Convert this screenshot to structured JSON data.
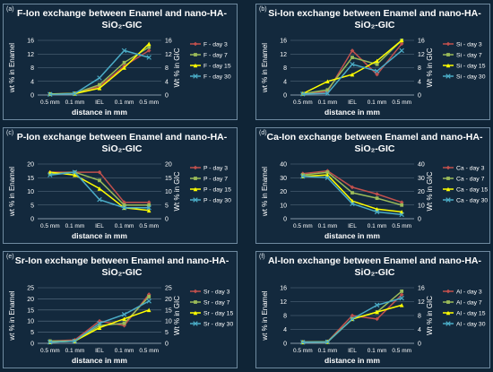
{
  "colors": {
    "background": "#0f2436",
    "panel": "#13293d",
    "border": "#6f8aa0",
    "grid": "#5d7385",
    "series": [
      "#c0504d",
      "#9bbb59",
      "#ffff00",
      "#4bacc6"
    ]
  },
  "chart_data": [
    {
      "type": "line",
      "letter": "(a)",
      "title": "F-Ion exchange between Enamel and nano-HA-SiO₂-GIC",
      "categories": [
        "0.5 mm",
        "0.1 mm",
        "IEL",
        "0.1 mm",
        "0.5 mm"
      ],
      "xlabel": "distance in mm",
      "ylabel": "wt % in Enamel",
      "ylabel2": "Wt % in GIC",
      "ylim": [
        0,
        16
      ],
      "yticks": [
        0,
        4,
        8,
        12,
        16
      ],
      "series": [
        {
          "name": "F - day 3",
          "values": [
            0.3,
            0.5,
            2.5,
            8.5,
            13
          ]
        },
        {
          "name": "F - day 7",
          "values": [
            0.3,
            0.5,
            3,
            9.5,
            14
          ]
        },
        {
          "name": "F - day 15",
          "values": [
            0.3,
            0.4,
            2,
            8,
            15
          ]
        },
        {
          "name": "F - day 30",
          "values": [
            0.2,
            0.4,
            5,
            13,
            11
          ]
        }
      ]
    },
    {
      "type": "line",
      "letter": "(b)",
      "title": "Si-Ion exchange between Enamel and nano-HA-SiO₂-GIC",
      "categories": [
        "0.5 mm",
        "0.1 mm",
        "IEL",
        "0.1 mm",
        "0.5 mm"
      ],
      "xlabel": "distance in mm",
      "ylabel": "wt % in Enamel",
      "ylabel2": "Wt % in GIC",
      "ylim": [
        0,
        16
      ],
      "yticks": [
        0,
        4,
        8,
        12,
        16
      ],
      "series": [
        {
          "name": "Si - day 3",
          "values": [
            0.4,
            1,
            13,
            6,
            15
          ]
        },
        {
          "name": "Si - day 7",
          "values": [
            0.4,
            1.5,
            11,
            9,
            16
          ]
        },
        {
          "name": "Si - day 15",
          "values": [
            0.4,
            4,
            6,
            10,
            16
          ]
        },
        {
          "name": "Si - day 30",
          "values": [
            0.3,
            0.5,
            9,
            7,
            13
          ]
        }
      ]
    },
    {
      "type": "line",
      "letter": "(c)",
      "title": "P-Ion exchange between Enamel and nano-HA-SiO₂-GIC",
      "categories": [
        "0.5 mm",
        "0.1 mm",
        "IEL",
        "0.1 mm",
        "0.5 mm"
      ],
      "xlabel": "distance in mm",
      "ylabel": "wt % in Enamel",
      "ylabel2": "Wt % in GIC",
      "ylim": [
        0,
        20
      ],
      "yticks": [
        0,
        5,
        10,
        15,
        20
      ],
      "series": [
        {
          "name": "P - day 3",
          "values": [
            17,
            17,
            17,
            6,
            6
          ]
        },
        {
          "name": "P - day 7",
          "values": [
            16.5,
            17,
            14,
            5,
            5
          ]
        },
        {
          "name": "P - day 15",
          "values": [
            17,
            16,
            11,
            4,
            3
          ]
        },
        {
          "name": "P - day 30",
          "values": [
            16,
            17,
            7,
            4,
            4
          ]
        }
      ]
    },
    {
      "type": "line",
      "letter": "(d)",
      "title": "Ca-Ion exchange between Enamel and nano-HA-SiO₂-GIC",
      "categories": [
        "0.5 mm",
        "0.1 mm",
        "IEL",
        "0.1 mm",
        "0.5 mm"
      ],
      "xlabel": "distance in mm",
      "ylabel": "wt % in Enamel",
      "ylabel2": "Wt % in GIC",
      "ylim": [
        0,
        40
      ],
      "yticks": [
        0,
        10,
        20,
        30,
        40
      ],
      "series": [
        {
          "name": "Ca - day 3",
          "values": [
            33,
            35,
            23,
            18,
            12
          ]
        },
        {
          "name": "Ca - day 7",
          "values": [
            32,
            34,
            19,
            15,
            10
          ]
        },
        {
          "name": "Ca - day 15",
          "values": [
            31,
            32,
            13,
            7,
            5
          ]
        },
        {
          "name": "Ca - day 30",
          "values": [
            31,
            30,
            11,
            5,
            3
          ]
        }
      ]
    },
    {
      "type": "line",
      "letter": "(e)",
      "title": "Sr-Ion exchange between Enamel and nano-HA-SiO₂-GIC",
      "categories": [
        "0.5 mm",
        "0.1 mm",
        "IEL",
        "0.1 mm",
        "0.5 mm"
      ],
      "xlabel": "distance in mm",
      "ylabel": "wt % in Enamel",
      "ylabel2": "Wt % in GIC",
      "ylim": [
        0,
        25
      ],
      "yticks": [
        0,
        5,
        10,
        15,
        20,
        25
      ],
      "series": [
        {
          "name": "Sr - day 3",
          "values": [
            1,
            1.5,
            10,
            8,
            22
          ]
        },
        {
          "name": "Sr - day 7",
          "values": [
            1,
            1,
            8,
            9,
            21
          ]
        },
        {
          "name": "Sr - day 15",
          "values": [
            0.5,
            1,
            7,
            11,
            15
          ]
        },
        {
          "name": "Sr - day 30",
          "values": [
            0.5,
            1,
            9,
            13,
            19
          ]
        }
      ]
    },
    {
      "type": "line",
      "letter": "(f)",
      "title": "Al-Ion exchange between Enamel and nano-HA-SiO₂-GIC",
      "categories": [
        "0.5 mm",
        "0.1 mm",
        "IEL",
        "0.1 mm",
        "0.5 mm"
      ],
      "xlabel": "distance in mm",
      "ylabel": "wt % in Enamel",
      "ylabel2": "Wt % in GIC",
      "ylim": [
        0,
        16
      ],
      "yticks": [
        0,
        4,
        8,
        12,
        16
      ],
      "series": [
        {
          "name": "Al - day 3",
          "values": [
            0.4,
            0.5,
            8,
            7,
            14
          ]
        },
        {
          "name": "Al - day 7",
          "values": [
            0.4,
            0.5,
            7,
            9,
            15
          ]
        },
        {
          "name": "Al - day 15",
          "values": [
            0.3,
            0.4,
            7,
            9,
            11
          ]
        },
        {
          "name": "Al - day 30",
          "values": [
            0.3,
            0.4,
            7,
            11,
            13
          ]
        }
      ]
    }
  ]
}
